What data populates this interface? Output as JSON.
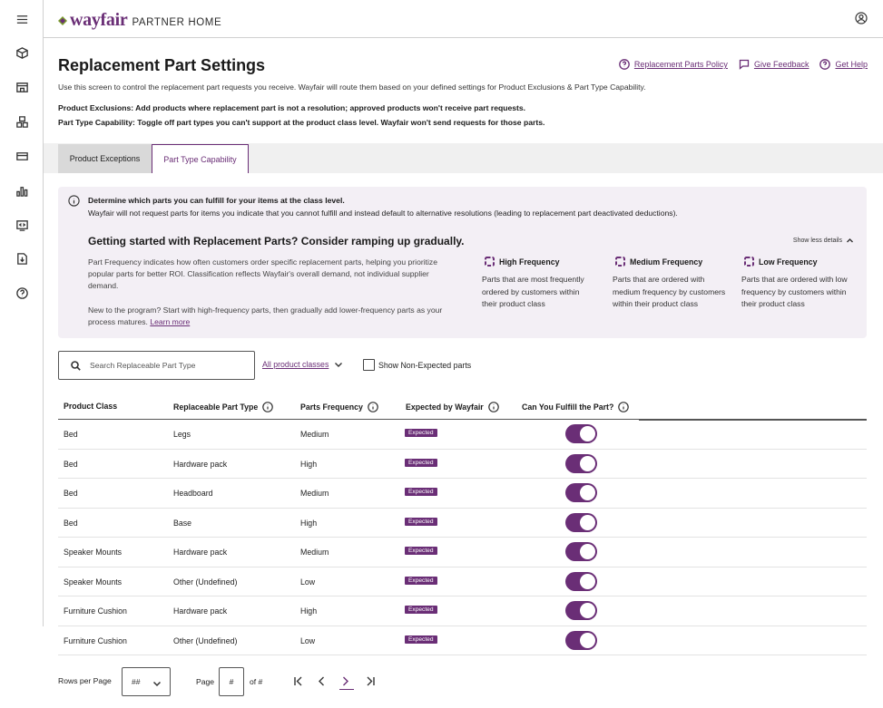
{
  "topbar": {
    "logo_word": "wayfair",
    "logo_sub": "PARTNER HOME"
  },
  "page": {
    "title": "Replacement Part Settings",
    "links": [
      "Replacement Parts Policy",
      "Give Feedback",
      "Get Help"
    ],
    "description": "Use this screen to control the replacement part requests you receive. Wayfair will route them based on your defined settings for Product Exclusions & Part Type Capability.",
    "rule_exclusions": "Product Exclusions: Add products where replacement part is not a resolution; approved products won't receive part requests.",
    "rule_capability": "Part Type Capability: Toggle off part types you can't support at the product class level. Wayfair won't send requests for those parts."
  },
  "tabs": [
    {
      "label": "Product Exceptions",
      "active": false
    },
    {
      "label": "Part Type Capability",
      "active": true
    }
  ],
  "info": {
    "title": "Determine which parts you can fulfill for your items at the class level.",
    "subtitle": "Wayfair will not request parts for items you indicate that you cannot fulfill and instead default to alternative resolutions (leading to replacement part deactivated deductions).",
    "ramp_title": "Getting started with Replacement Parts? Consider ramping up gradually.",
    "show_less": "Show less details",
    "pf_text": "Part Frequency indicates how often customers order specific replacement parts, helping you prioritize popular parts for better ROI. Classification reflects Wayfair's overall demand, not individual supplier demand.",
    "new_text": "New to the program? Start with high-frequency parts, then gradually add lower-frequency parts as your process matures.",
    "learn_more": "Learn more",
    "frequencies": [
      {
        "title": "High Frequency",
        "text": "Parts that are most frequently ordered by customers within their product class"
      },
      {
        "title": "Medium Frequency",
        "text": "Parts that are ordered with medium frequency by customers within their product class"
      },
      {
        "title": "Low Frequency",
        "text": "Parts that are ordered with low frequency by customers within their product class"
      }
    ]
  },
  "filters": {
    "search_placeholder": "Search Replaceable Part Type",
    "classes_label": "All product classes",
    "non_expected_label": "Show Non-Expected parts"
  },
  "table": {
    "headers": [
      "Product Class",
      "Replaceable Part Type",
      "Parts Frequency",
      "Expected by Wayfair",
      "Can You Fulfill the Part?"
    ],
    "rows": [
      {
        "product_class": "Bed",
        "part_type": "Legs",
        "frequency": "Medium",
        "expected": "Expected",
        "fulfill": true
      },
      {
        "product_class": "Bed",
        "part_type": "Hardware pack",
        "frequency": "High",
        "expected": "Expected",
        "fulfill": true
      },
      {
        "product_class": "Bed",
        "part_type": "Headboard",
        "frequency": "Medium",
        "expected": "Expected",
        "fulfill": true
      },
      {
        "product_class": "Bed",
        "part_type": "Base",
        "frequency": "High",
        "expected": "Expected",
        "fulfill": true
      },
      {
        "product_class": "Speaker Mounts",
        "part_type": "Hardware pack",
        "frequency": "Medium",
        "expected": "Expected",
        "fulfill": true
      },
      {
        "product_class": "Speaker Mounts",
        "part_type": "Other (Undefined)",
        "frequency": "Low",
        "expected": "Expected",
        "fulfill": true
      },
      {
        "product_class": "Furniture Cushion",
        "part_type": "Hardware pack",
        "frequency": "High",
        "expected": "Expected",
        "fulfill": true
      },
      {
        "product_class": "Furniture Cushion",
        "part_type": "Other (Undefined)",
        "frequency": "Low",
        "expected": "Expected",
        "fulfill": true
      }
    ]
  },
  "pager": {
    "rows_label": "Rows per Page",
    "rows_value": "##",
    "page_label": "Page",
    "page_value": "#",
    "of_label": "of #"
  },
  "colors": {
    "brand": "#6a2e76",
    "info_bg": "#f3eff5"
  }
}
